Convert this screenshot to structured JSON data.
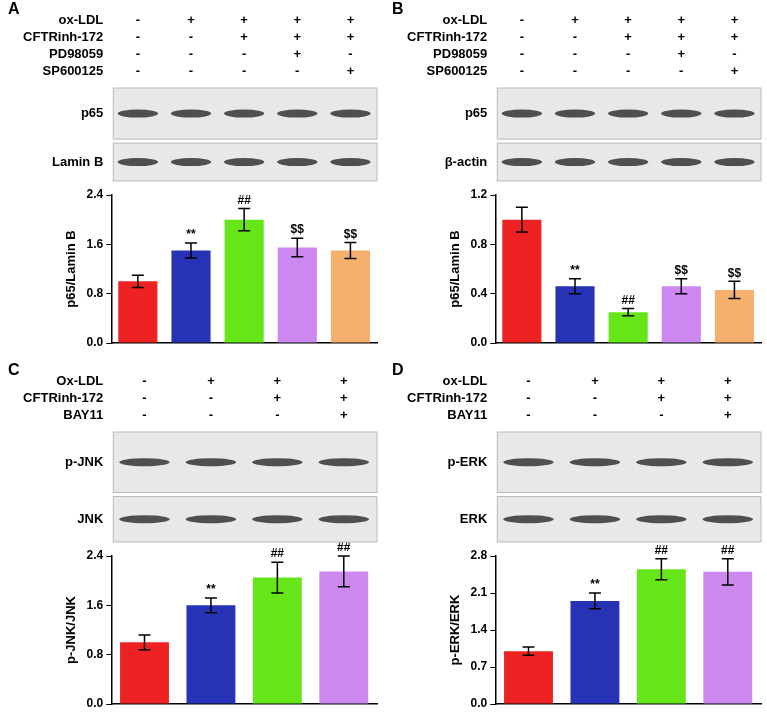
{
  "chart_data": [
    {
      "type": "bar",
      "panel": "A",
      "treatments": [
        {
          "label": "ox-LDL",
          "marks": [
            "-",
            "+",
            "+",
            "+",
            "+"
          ]
        },
        {
          "label": "CFTRinh-172",
          "marks": [
            "-",
            "-",
            "+",
            "+",
            "+"
          ]
        },
        {
          "label": "PD98059",
          "marks": [
            "-",
            "-",
            "-",
            "+",
            "-"
          ]
        },
        {
          "label": "SP600125",
          "marks": [
            "-",
            "-",
            "-",
            "-",
            "+"
          ]
        }
      ],
      "blots": [
        "p65",
        "Lamin B"
      ],
      "ylabel": "p65/Lamin B",
      "categories": [
        null,
        null,
        null,
        null,
        null
      ],
      "values": [
        1.0,
        1.5,
        2.0,
        1.55,
        1.5
      ],
      "errors": [
        0.1,
        0.12,
        0.18,
        0.15,
        0.13
      ],
      "annotations": [
        null,
        "**",
        "##",
        "$$",
        "$$"
      ],
      "colors": [
        "#ee2222",
        "#2633b5",
        "#66e619",
        "#cc88ee",
        "#f5b070"
      ],
      "ylim": [
        0,
        2.4
      ],
      "yticks": [
        {
          "value": 0,
          "label": "0.0"
        },
        0.8,
        1.6,
        2.4
      ],
      "tick_labels": "y",
      "grid": false
    },
    {
      "type": "bar",
      "panel": "B",
      "treatments": [
        {
          "label": "ox-LDL",
          "marks": [
            "-",
            "+",
            "+",
            "+",
            "+"
          ]
        },
        {
          "label": "CFTRinh-172",
          "marks": [
            "-",
            "-",
            "+",
            "+",
            "+"
          ]
        },
        {
          "label": "PD98059",
          "marks": [
            "-",
            "-",
            "-",
            "+",
            "-"
          ]
        },
        {
          "label": "SP600125",
          "marks": [
            "-",
            "-",
            "-",
            "-",
            "+"
          ]
        }
      ],
      "blots": [
        "p65",
        "β-actin"
      ],
      "ylabel": "p65/Lamin B",
      "categories": [
        null,
        null,
        null,
        null,
        null
      ],
      "values": [
        1.0,
        0.46,
        0.25,
        0.46,
        0.43
      ],
      "errors": [
        0.1,
        0.06,
        0.03,
        0.06,
        0.07
      ],
      "annotations": [
        null,
        "**",
        "##",
        "$$",
        "$$"
      ],
      "colors": [
        "#ee2222",
        "#2633b5",
        "#66e619",
        "#cc88ee",
        "#f5b070"
      ],
      "ylim": [
        0,
        1.2
      ],
      "yticks": [
        {
          "value": 0,
          "label": "0.0"
        },
        0.4,
        0.8,
        1.2
      ],
      "tick_labels": "y",
      "grid": false
    },
    {
      "type": "bar",
      "panel": "C",
      "treatments": [
        {
          "label": "Ox-LDL",
          "marks": [
            "-",
            "+",
            "+",
            "+"
          ]
        },
        {
          "label": "CFTRinh-172",
          "marks": [
            "-",
            "-",
            "+",
            "+"
          ]
        },
        {
          "label": "BAY11",
          "marks": [
            "-",
            "-",
            "-",
            "+"
          ]
        }
      ],
      "blots": [
        "p-JNK",
        "JNK"
      ],
      "ylabel": "p-JNK/JNK",
      "categories": [
        null,
        null,
        null,
        null
      ],
      "values": [
        1.0,
        1.6,
        2.05,
        2.15
      ],
      "errors": [
        0.12,
        0.12,
        0.25,
        0.25
      ],
      "annotations": [
        null,
        "**",
        "##",
        "##"
      ],
      "colors": [
        "#ee2222",
        "#2633b5",
        "#66e619",
        "#cc88ee"
      ],
      "ylim": [
        0,
        2.4
      ],
      "yticks": [
        {
          "value": 0,
          "label": "0.0"
        },
        0.8,
        1.6,
        2.4
      ],
      "tick_labels": "y",
      "grid": false
    },
    {
      "type": "bar",
      "panel": "D",
      "treatments": [
        {
          "label": "ox-LDL",
          "marks": [
            "-",
            "+",
            "+",
            "+"
          ]
        },
        {
          "label": "CFTRinh-172",
          "marks": [
            "-",
            "-",
            "+",
            "+"
          ]
        },
        {
          "label": "BAY11",
          "marks": [
            "-",
            "-",
            "-",
            "+"
          ]
        }
      ],
      "blots": [
        "p-ERK",
        "ERK"
      ],
      "ylabel": "p-ERK/ERK",
      "categories": [
        null,
        null,
        null,
        null
      ],
      "values": [
        1.0,
        1.95,
        2.55,
        2.5
      ],
      "errors": [
        0.08,
        0.15,
        0.2,
        0.25
      ],
      "annotations": [
        null,
        "**",
        "##",
        "##"
      ],
      "colors": [
        "#ee2222",
        "#2633b5",
        "#66e619",
        "#cc88ee"
      ],
      "ylim": [
        0,
        2.8
      ],
      "yticks": [
        {
          "value": 0,
          "label": "0.0"
        },
        0.7,
        1.4,
        2.1,
        2.8
      ],
      "tick_labels": "y",
      "grid": false
    }
  ]
}
